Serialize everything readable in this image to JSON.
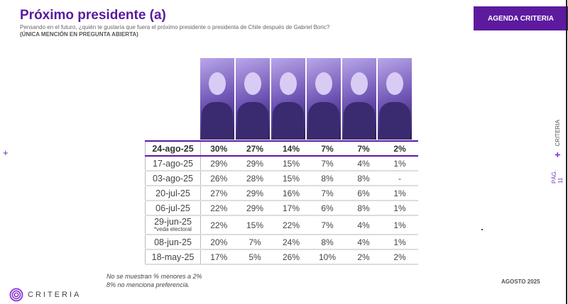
{
  "header": {
    "title": "Próximo presidente (a)",
    "subtitle": "Pensando en el futuro, ¿quién te gustaría que fuera el próximo presidente o presidenta de Chile después de Gabriel Boric?",
    "subtitle2": "(ÚNICA MENCIÓN EN PREGUNTA ABIERTA)",
    "badge": "AGENDA CRITERIA"
  },
  "side": {
    "brand": "CRITERIA",
    "page": "PÁG. 11"
  },
  "table": {
    "rows": [
      {
        "date": "24-ago-25",
        "values": [
          "30%",
          "27%",
          "14%",
          "7%",
          "7%",
          "2%"
        ]
      },
      {
        "date": "17-ago-25",
        "values": [
          "29%",
          "29%",
          "15%",
          "7%",
          "4%",
          "1%"
        ]
      },
      {
        "date": "03-ago-25",
        "values": [
          "26%",
          "28%",
          "15%",
          "8%",
          "8%",
          "-"
        ]
      },
      {
        "date": "20-jul-25",
        "values": [
          "27%",
          "29%",
          "16%",
          "7%",
          "6%",
          "1%"
        ]
      },
      {
        "date": "06-jul-25",
        "values": [
          "22%",
          "29%",
          "17%",
          "6%",
          "8%",
          "1%"
        ]
      },
      {
        "date": "29-jun-25",
        "note": "*veda electoral",
        "values": [
          "22%",
          "15%",
          "22%",
          "7%",
          "4%",
          "1%"
        ]
      },
      {
        "date": "08-jun-25",
        "values": [
          "20%",
          "7%",
          "24%",
          "8%",
          "4%",
          "1%"
        ]
      },
      {
        "date": "18-may-25",
        "values": [
          "17%",
          "5%",
          "26%",
          "10%",
          "2%",
          "2%"
        ]
      }
    ]
  },
  "footer": {
    "note1": "No se muestran % menores a 2%",
    "note2": "8% no menciona preferencia.",
    "month": "AGOSTO 2025",
    "logo": "CRITERIA"
  },
  "colors": {
    "brand": "#5d1a9f"
  }
}
